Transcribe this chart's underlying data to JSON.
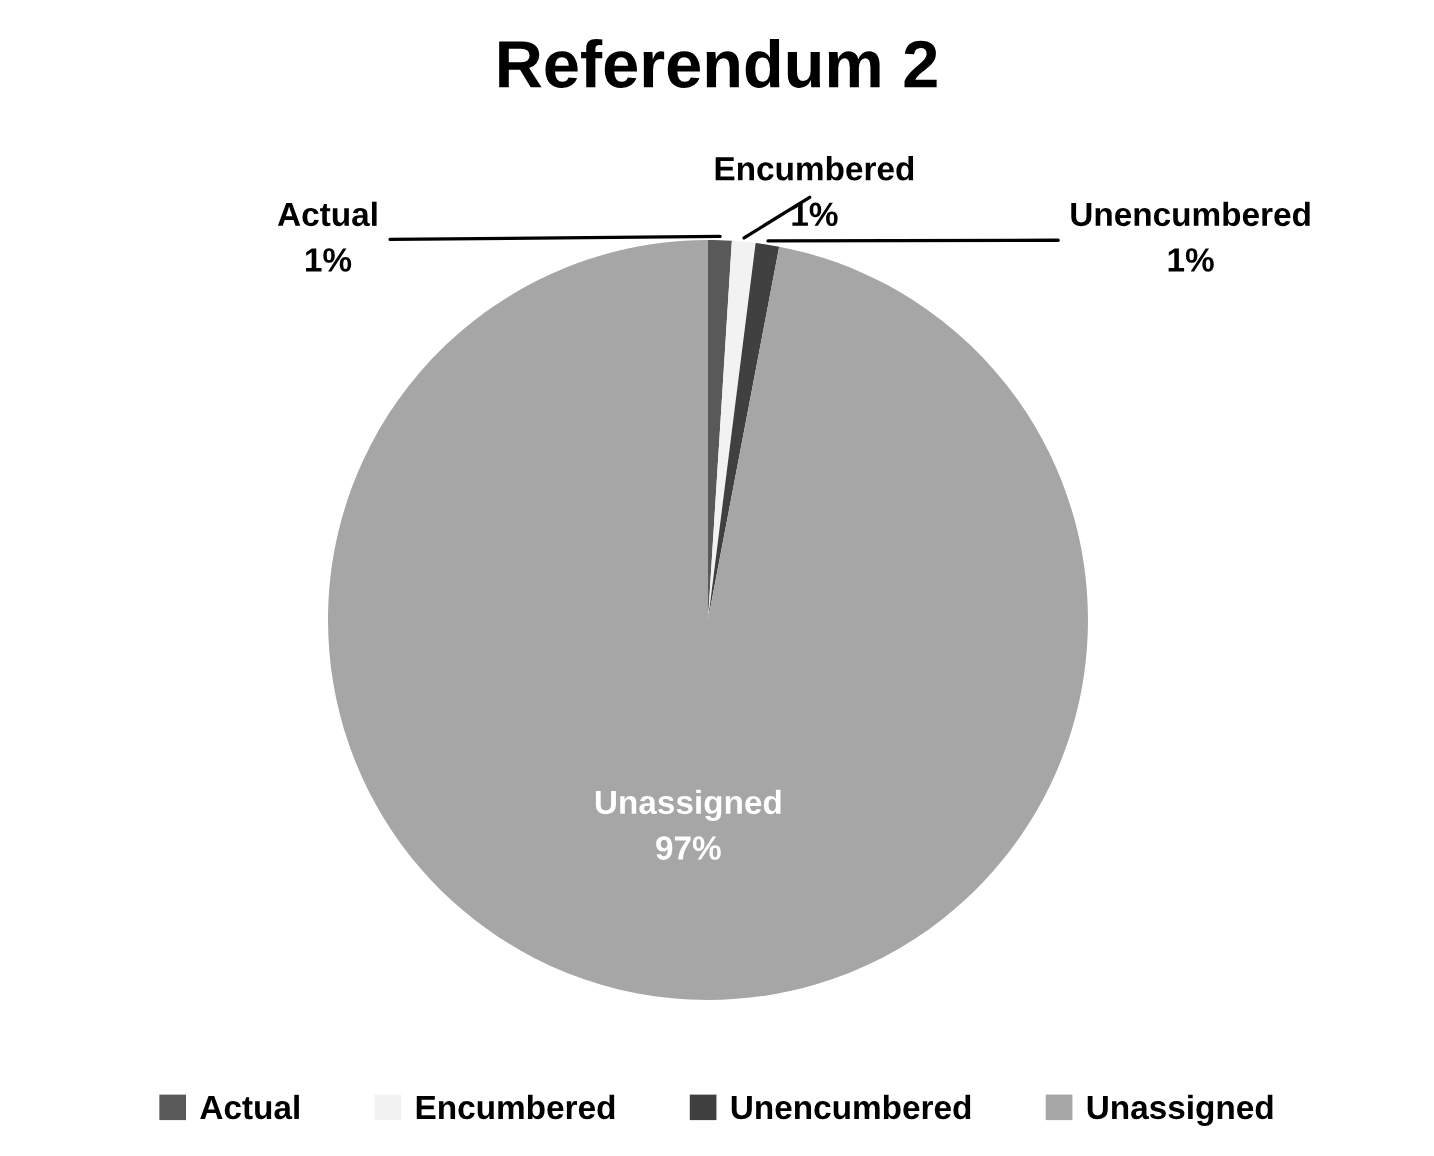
{
  "chart_data": {
    "type": "pie",
    "title": "Referendum 2",
    "categories": [
      "Actual",
      "Encumbered",
      "Unencumbered",
      "Unassigned"
    ],
    "values": [
      1,
      1,
      1,
      97
    ],
    "value_labels": [
      "1%",
      "1%",
      "1%",
      "97%"
    ],
    "colors": [
      "#595959",
      "#f2f2f2",
      "#404040",
      "#a6a6a6"
    ],
    "legend": "bottom"
  }
}
